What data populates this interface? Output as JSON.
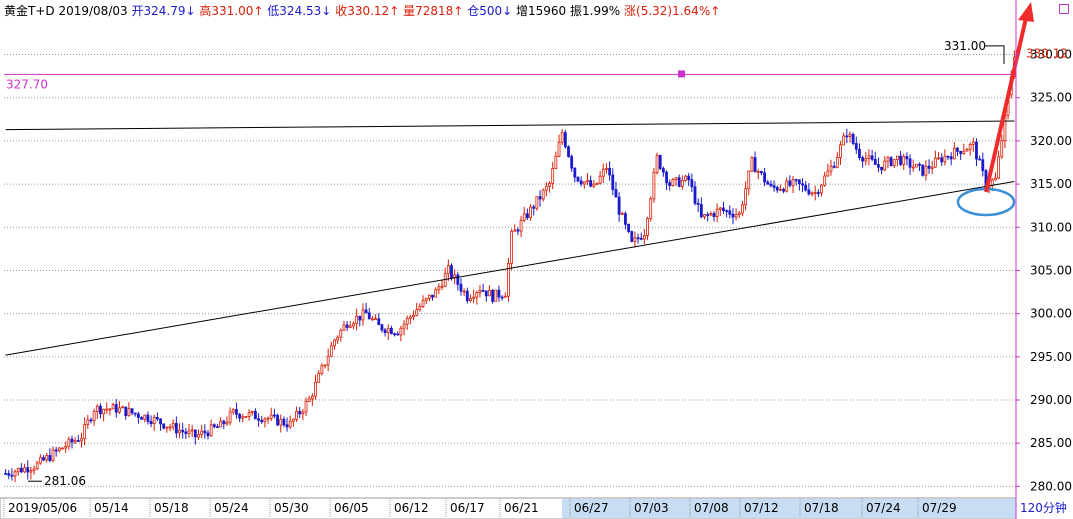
{
  "header": {
    "name": "黄金T+D",
    "date": "2019/08/03",
    "open_label": "开",
    "open": "324.79",
    "open_arrow": "↓",
    "high_label": "高",
    "high": "331.00",
    "high_arrow": "↑",
    "low_label": "低",
    "low": "324.53",
    "low_arrow": "↓",
    "close_label": "收",
    "close": "330.12",
    "close_arrow": "↑",
    "volume_label": "量",
    "volume": "72818",
    "volume_arrow": "↑",
    "oi_label": "仓",
    "oi": "500",
    "oi_arrow": "↓",
    "oi_change_label": "增",
    "oi_change": "15960",
    "amplitude_label": "振",
    "amplitude": "1.99%",
    "change_label": "涨",
    "change": "(5.32)1.64%",
    "change_arrow": "↑"
  },
  "period_label": "120分钟",
  "colors": {
    "up": "#d81e06",
    "down": "#1a1acc",
    "grid": "#9a9a9a",
    "axis": "#cc33cc",
    "hline": "#cc33cc",
    "trend": "#000000",
    "arrow": "#ef2b2b",
    "circle": "#3a8fd6",
    "selected_range": "#c6ddf4"
  },
  "chart_data": {
    "type": "candlestick",
    "title": "",
    "ylim": [
      279,
      334
    ],
    "y_ticks": [
      280.0,
      285.0,
      290.0,
      295.0,
      300.0,
      305.0,
      310.0,
      315.0,
      320.0,
      325.0,
      330.0
    ],
    "x_tick_labels": [
      "2019/05/06",
      "05/14",
      "05/18",
      "05/24",
      "05/30",
      "06/05",
      "06/12",
      "06/17",
      "06/21",
      "06/27",
      "07/03",
      "07/08",
      "07/12",
      "07/18",
      "07/24",
      "07/29"
    ],
    "n_bars": 320,
    "key_points": [
      {
        "x": 0,
        "y": 281.5
      },
      {
        "x": 10,
        "y": 282.5
      },
      {
        "x": 18,
        "y": 284.5
      },
      {
        "x": 24,
        "y": 285.8
      },
      {
        "x": 28,
        "y": 289.0
      },
      {
        "x": 35,
        "y": 289.0
      },
      {
        "x": 45,
        "y": 288.0
      },
      {
        "x": 55,
        "y": 286.5
      },
      {
        "x": 60,
        "y": 285.8
      },
      {
        "x": 68,
        "y": 287.0
      },
      {
        "x": 72,
        "y": 288.5
      },
      {
        "x": 82,
        "y": 288.0
      },
      {
        "x": 90,
        "y": 287.2
      },
      {
        "x": 96,
        "y": 290.0
      },
      {
        "x": 100,
        "y": 293.5
      },
      {
        "x": 104,
        "y": 297.0
      },
      {
        "x": 108,
        "y": 299.0
      },
      {
        "x": 114,
        "y": 300.0
      },
      {
        "x": 118,
        "y": 298.5
      },
      {
        "x": 124,
        "y": 298.0
      },
      {
        "x": 130,
        "y": 300.5
      },
      {
        "x": 136,
        "y": 302.5
      },
      {
        "x": 140,
        "y": 305.0
      },
      {
        "x": 146,
        "y": 302.0
      },
      {
        "x": 150,
        "y": 303.0
      },
      {
        "x": 154,
        "y": 302.0
      },
      {
        "x": 158,
        "y": 302.5
      },
      {
        "x": 160,
        "y": 309.0
      },
      {
        "x": 166,
        "y": 312.0
      },
      {
        "x": 172,
        "y": 315.0
      },
      {
        "x": 176,
        "y": 321.0
      },
      {
        "x": 180,
        "y": 316.0
      },
      {
        "x": 186,
        "y": 314.5
      },
      {
        "x": 190,
        "y": 317.0
      },
      {
        "x": 194,
        "y": 312.0
      },
      {
        "x": 198,
        "y": 308.0
      },
      {
        "x": 202,
        "y": 309.5
      },
      {
        "x": 206,
        "y": 318.0
      },
      {
        "x": 210,
        "y": 315.0
      },
      {
        "x": 216,
        "y": 315.5
      },
      {
        "x": 220,
        "y": 311.0
      },
      {
        "x": 226,
        "y": 312.0
      },
      {
        "x": 232,
        "y": 311.5
      },
      {
        "x": 236,
        "y": 317.5
      },
      {
        "x": 242,
        "y": 314.5
      },
      {
        "x": 250,
        "y": 315.0
      },
      {
        "x": 256,
        "y": 314.0
      },
      {
        "x": 262,
        "y": 317.5
      },
      {
        "x": 266,
        "y": 321.0
      },
      {
        "x": 270,
        "y": 318.5
      },
      {
        "x": 276,
        "y": 317.0
      },
      {
        "x": 282,
        "y": 318.0
      },
      {
        "x": 290,
        "y": 316.5
      },
      {
        "x": 296,
        "y": 318.0
      },
      {
        "x": 302,
        "y": 319.0
      },
      {
        "x": 306,
        "y": 319.5
      },
      {
        "x": 310,
        "y": 315.0
      },
      {
        "x": 313,
        "y": 315.5
      },
      {
        "x": 316,
        "y": 322.5
      },
      {
        "x": 319,
        "y": 330.12
      }
    ],
    "annotations": {
      "high_label": "331.00",
      "low_label": "281.06",
      "hline_value_label": "327.70",
      "hline_value": 327.7,
      "last_price_label": "330.12",
      "last_price": 330.12
    },
    "upper_trendline": [
      {
        "x": 0,
        "y": 321.3
      },
      {
        "x": 320,
        "y": 322.3
      }
    ],
    "lower_trendline": [
      {
        "x": 0,
        "y": 295.2
      },
      {
        "x": 320,
        "y": 315.3
      }
    ],
    "grid": true
  }
}
